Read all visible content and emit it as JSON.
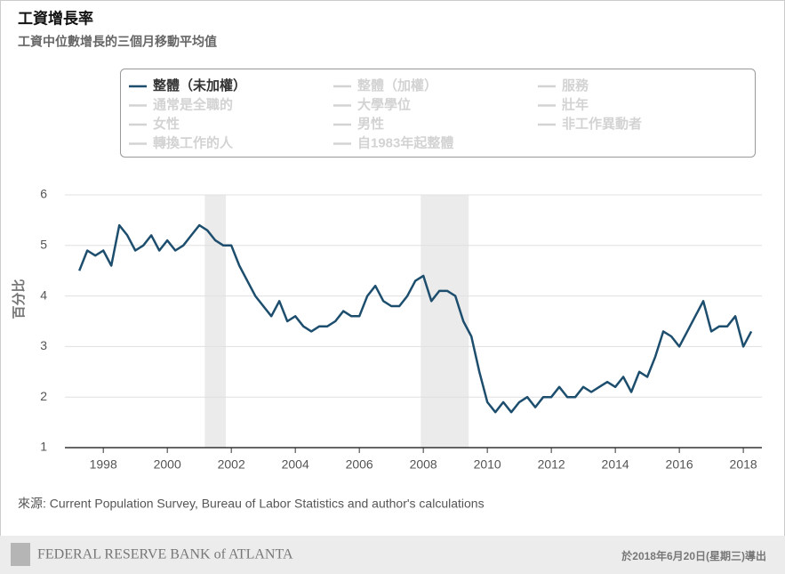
{
  "chart_data": {
    "type": "line",
    "title": "工資增長率",
    "subtitle": "工資中位數增長的三個月移動平均值",
    "y_label": "百分比",
    "source": "來源: Current Population Survey, Bureau of Labor Statistics and author's calculations",
    "brand": "FEDERAL RESERVE BANK of ATLANTA",
    "export_note": "於2018年6月20日(星期三)導出",
    "inactive_legend": [
      "整體（加權）",
      "服務",
      "通常是全職的",
      "大學學位",
      "壯年",
      "女性",
      "男性",
      "非工作異動者",
      "轉換工作的人",
      "自1983年起整體"
    ],
    "inactive_color": "#d3d3d3",
    "shaded_periods": [
      [
        2001.17,
        2001.83
      ],
      [
        2007.92,
        2009.42
      ]
    ],
    "shade_color": "#ebebeb",
    "x": [
      1997.25,
      1997.5,
      1997.75,
      1998.0,
      1998.25,
      1998.5,
      1998.75,
      1999.0,
      1999.25,
      1999.5,
      1999.75,
      2000.0,
      2000.25,
      2000.5,
      2000.75,
      2001.0,
      2001.25,
      2001.5,
      2001.75,
      2002.0,
      2002.25,
      2002.5,
      2002.75,
      2003.0,
      2003.25,
      2003.5,
      2003.75,
      2004.0,
      2004.25,
      2004.5,
      2004.75,
      2005.0,
      2005.25,
      2005.5,
      2005.75,
      2006.0,
      2006.25,
      2006.5,
      2006.75,
      2007.0,
      2007.25,
      2007.5,
      2007.75,
      2008.0,
      2008.25,
      2008.5,
      2008.75,
      2009.0,
      2009.25,
      2009.5,
      2009.75,
      2010.0,
      2010.25,
      2010.5,
      2010.75,
      2011.0,
      2011.25,
      2011.5,
      2011.75,
      2012.0,
      2012.25,
      2012.5,
      2012.75,
      2013.0,
      2013.25,
      2013.5,
      2013.75,
      2014.0,
      2014.25,
      2014.5,
      2014.75,
      2015.0,
      2015.25,
      2015.5,
      2015.75,
      2016.0,
      2016.25,
      2016.5,
      2016.75,
      2017.0,
      2017.25,
      2017.5,
      2017.75,
      2018.0,
      2018.25
    ],
    "series": [
      {
        "name": "整體（未加權）",
        "color": "#1d4e6e",
        "values": [
          4.5,
          4.9,
          4.8,
          4.9,
          4.6,
          5.4,
          5.2,
          4.9,
          5.0,
          5.2,
          4.9,
          5.1,
          4.9,
          5.0,
          5.2,
          5.4,
          5.3,
          5.1,
          5.0,
          5.0,
          4.6,
          4.3,
          4.0,
          3.8,
          3.6,
          3.9,
          3.5,
          3.6,
          3.4,
          3.3,
          3.4,
          3.4,
          3.5,
          3.7,
          3.6,
          3.6,
          4.0,
          4.2,
          3.9,
          3.8,
          3.8,
          4.0,
          4.3,
          4.4,
          3.9,
          4.1,
          4.1,
          4.0,
          3.5,
          3.2,
          2.5,
          1.9,
          1.7,
          1.9,
          1.7,
          1.9,
          2.0,
          1.8,
          2.0,
          2.0,
          2.2,
          2.0,
          2.0,
          2.2,
          2.1,
          2.2,
          2.3,
          2.2,
          2.4,
          2.1,
          2.5,
          2.4,
          2.8,
          3.3,
          3.2,
          3.0,
          3.3,
          3.6,
          3.9,
          3.3,
          3.4,
          3.4,
          3.6,
          3.0,
          3.3
        ]
      }
    ],
    "xlim": [
      1996.8,
      2018.58
    ],
    "xticks": [
      1998,
      2000,
      2002,
      2004,
      2006,
      2008,
      2010,
      2012,
      2014,
      2016,
      2018
    ],
    "ylim": [
      1,
      6
    ],
    "yticks": [
      1,
      2,
      3,
      4,
      5,
      6
    ],
    "grid": true
  }
}
